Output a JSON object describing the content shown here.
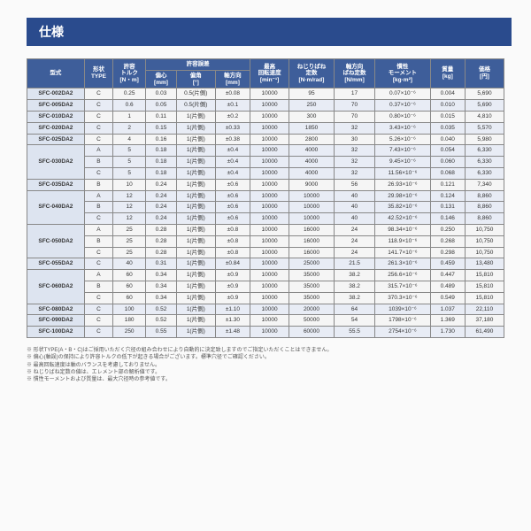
{
  "title": "仕様",
  "headers": {
    "model": "型式",
    "type": "形状\nTYPE",
    "torque": "許容\nトルク\n[N・m]",
    "tolerance_group": "許容誤差",
    "ecc": "偏心\n[mm]",
    "ang": "偏角\n[°]",
    "axial": "軸方向\n[mm]",
    "speed": "最高\n回転速度\n[min⁻¹]",
    "tspring": "ねじりばね\n定数\n[N·m/rad]",
    "aspring": "軸方向\nばね定数\n[N/mm]",
    "moment": "慣性\nモーメント\n[kg·m²]",
    "mass": "質量\n[kg]",
    "price": "価格\n[円]"
  },
  "rows": [
    {
      "model": "SFC-002DA2",
      "type": "C",
      "torque": "0.25",
      "ecc": "0.03",
      "ang": "0.5(片側)",
      "axial": "±0.08",
      "speed": "10000",
      "tspring": "95",
      "aspring": "17",
      "moment": "0.07×10⁻⁶",
      "mass": "0.004",
      "price": "5,690",
      "cls": "stripe-a"
    },
    {
      "model": "SFC-005DA2",
      "type": "C",
      "torque": "0.6",
      "ecc": "0.05",
      "ang": "0.5(片側)",
      "axial": "±0.1",
      "speed": "10000",
      "tspring": "250",
      "aspring": "70",
      "moment": "0.37×10⁻⁶",
      "mass": "0.010",
      "price": "5,690",
      "cls": "stripe-b"
    },
    {
      "model": "SFC-010DA2",
      "type": "C",
      "torque": "1",
      "ecc": "0.11",
      "ang": "1(片側)",
      "axial": "±0.2",
      "speed": "10000",
      "tspring": "300",
      "aspring": "70",
      "moment": "0.80×10⁻⁶",
      "mass": "0.015",
      "price": "4,810",
      "cls": "stripe-a"
    },
    {
      "model": "SFC-020DA2",
      "type": "C",
      "torque": "2",
      "ecc": "0.15",
      "ang": "1(片側)",
      "axial": "±0.33",
      "speed": "10000",
      "tspring": "1850",
      "aspring": "32",
      "moment": "3.43×10⁻⁶",
      "mass": "0.035",
      "price": "5,570",
      "cls": "stripe-b"
    },
    {
      "model": "SFC-025DA2",
      "type": "C",
      "torque": "4",
      "ecc": "0.16",
      "ang": "1(片側)",
      "axial": "±0.38",
      "speed": "10000",
      "tspring": "2800",
      "aspring": "30",
      "moment": "5.26×10⁻⁶",
      "mass": "0.040",
      "price": "5,980",
      "cls": "stripe-a"
    },
    {
      "model": "SFC-030DA2",
      "span": 3,
      "rows": [
        {
          "type": "A",
          "torque": "5",
          "ecc": "0.18",
          "ang": "1(片側)",
          "axial": "±0.4",
          "speed": "10000",
          "tspring": "4000",
          "aspring": "32",
          "moment": "7.43×10⁻⁶",
          "mass": "0.054",
          "price": "6,330"
        },
        {
          "type": "B",
          "torque": "5",
          "ecc": "0.18",
          "ang": "1(片側)",
          "axial": "±0.4",
          "speed": "10000",
          "tspring": "4000",
          "aspring": "32",
          "moment": "9.45×10⁻⁶",
          "mass": "0.060",
          "price": "6,330"
        },
        {
          "type": "C",
          "torque": "5",
          "ecc": "0.18",
          "ang": "1(片側)",
          "axial": "±0.4",
          "speed": "10000",
          "tspring": "4000",
          "aspring": "32",
          "moment": "11.56×10⁻⁶",
          "mass": "0.068",
          "price": "6,330"
        }
      ],
      "cls": "stripe-b"
    },
    {
      "model": "SFC-035DA2",
      "type": "B",
      "torque": "10",
      "ecc": "0.24",
      "ang": "1(片側)",
      "axial": "±0.6",
      "speed": "10000",
      "tspring": "9000",
      "aspring": "56",
      "moment": "26.93×10⁻⁶",
      "mass": "0.121",
      "price": "7,340",
      "cls": "stripe-a"
    },
    {
      "model": "SFC-040DA2",
      "span": 3,
      "rows": [
        {
          "type": "A",
          "torque": "12",
          "ecc": "0.24",
          "ang": "1(片側)",
          "axial": "±0.6",
          "speed": "10000",
          "tspring": "10000",
          "aspring": "40",
          "moment": "29.98×10⁻⁶",
          "mass": "0.124",
          "price": "8,860"
        },
        {
          "type": "B",
          "torque": "12",
          "ecc": "0.24",
          "ang": "1(片側)",
          "axial": "±0.6",
          "speed": "10000",
          "tspring": "10000",
          "aspring": "40",
          "moment": "35.82×10⁻⁶",
          "mass": "0.131",
          "price": "8,860"
        },
        {
          "type": "C",
          "torque": "12",
          "ecc": "0.24",
          "ang": "1(片側)",
          "axial": "±0.6",
          "speed": "10000",
          "tspring": "10000",
          "aspring": "40",
          "moment": "42.52×10⁻⁶",
          "mass": "0.146",
          "price": "8,860"
        }
      ],
      "cls": "stripe-b"
    },
    {
      "model": "SFC-050DA2",
      "span": 3,
      "rows": [
        {
          "type": "A",
          "torque": "25",
          "ecc": "0.28",
          "ang": "1(片側)",
          "axial": "±0.8",
          "speed": "10000",
          "tspring": "16000",
          "aspring": "24",
          "moment": "98.34×10⁻⁶",
          "mass": "0.250",
          "price": "10,750"
        },
        {
          "type": "B",
          "torque": "25",
          "ecc": "0.28",
          "ang": "1(片側)",
          "axial": "±0.8",
          "speed": "10000",
          "tspring": "16000",
          "aspring": "24",
          "moment": "118.9×10⁻⁶",
          "mass": "0.268",
          "price": "10,750"
        },
        {
          "type": "C",
          "torque": "25",
          "ecc": "0.28",
          "ang": "1(片側)",
          "axial": "±0.8",
          "speed": "10000",
          "tspring": "16000",
          "aspring": "24",
          "moment": "141.7×10⁻⁶",
          "mass": "0.298",
          "price": "10,750"
        }
      ],
      "cls": "stripe-a"
    },
    {
      "model": "SFC-055DA2",
      "type": "C",
      "torque": "40",
      "ecc": "0.31",
      "ang": "1(片側)",
      "axial": "±0.84",
      "speed": "10000",
      "tspring": "25000",
      "aspring": "21.5",
      "moment": "261.3×10⁻⁶",
      "mass": "0.459",
      "price": "13,480",
      "cls": "stripe-b"
    },
    {
      "model": "SFC-060DA2",
      "span": 3,
      "rows": [
        {
          "type": "A",
          "torque": "60",
          "ecc": "0.34",
          "ang": "1(片側)",
          "axial": "±0.9",
          "speed": "10000",
          "tspring": "35000",
          "aspring": "38.2",
          "moment": "256.6×10⁻⁶",
          "mass": "0.447",
          "price": "15,810"
        },
        {
          "type": "B",
          "torque": "60",
          "ecc": "0.34",
          "ang": "1(片側)",
          "axial": "±0.9",
          "speed": "10000",
          "tspring": "35000",
          "aspring": "38.2",
          "moment": "315.7×10⁻⁶",
          "mass": "0.489",
          "price": "15,810"
        },
        {
          "type": "C",
          "torque": "60",
          "ecc": "0.34",
          "ang": "1(片側)",
          "axial": "±0.9",
          "speed": "10000",
          "tspring": "35000",
          "aspring": "38.2",
          "moment": "370.3×10⁻⁶",
          "mass": "0.549",
          "price": "15,810"
        }
      ],
      "cls": "stripe-a"
    },
    {
      "model": "SFC-080DA2",
      "type": "C",
      "torque": "100",
      "ecc": "0.52",
      "ang": "1(片側)",
      "axial": "±1.10",
      "speed": "10000",
      "tspring": "20000",
      "aspring": "64",
      "moment": "1039×10⁻⁶",
      "mass": "1.037",
      "price": "22,110",
      "cls": "stripe-b"
    },
    {
      "model": "SFC-090DA2",
      "type": "C",
      "torque": "180",
      "ecc": "0.52",
      "ang": "1(片側)",
      "axial": "±1.30",
      "speed": "10000",
      "tspring": "50000",
      "aspring": "54",
      "moment": "1798×10⁻⁶",
      "mass": "1.369",
      "price": "37,180",
      "cls": "stripe-a"
    },
    {
      "model": "SFC-100DA2",
      "type": "C",
      "torque": "250",
      "ecc": "0.55",
      "ang": "1(片側)",
      "axial": "±1.48",
      "speed": "10000",
      "tspring": "60000",
      "aspring": "55.5",
      "moment": "2754×10⁻⁶",
      "mass": "1.730",
      "price": "61,490",
      "cls": "stripe-b"
    }
  ],
  "notes": [
    "※ 形状TYPE(A・B・C)はご採用いただく穴径の組み合わせにより自動的に決定致しますのでご指定いただくことはできません。",
    "※ 偏心(軸誤)の保持により許容トルクの低下が起きる場合がございます。標準穴径でご確認ください。",
    "※ 最高回転速度は軸のバランスを考慮しておりません。",
    "※ ねじりばね定数の値は、エレメント部の解析値です。",
    "※ 慣性モーメントおよび質量は、最大穴径時の参考値です。"
  ]
}
